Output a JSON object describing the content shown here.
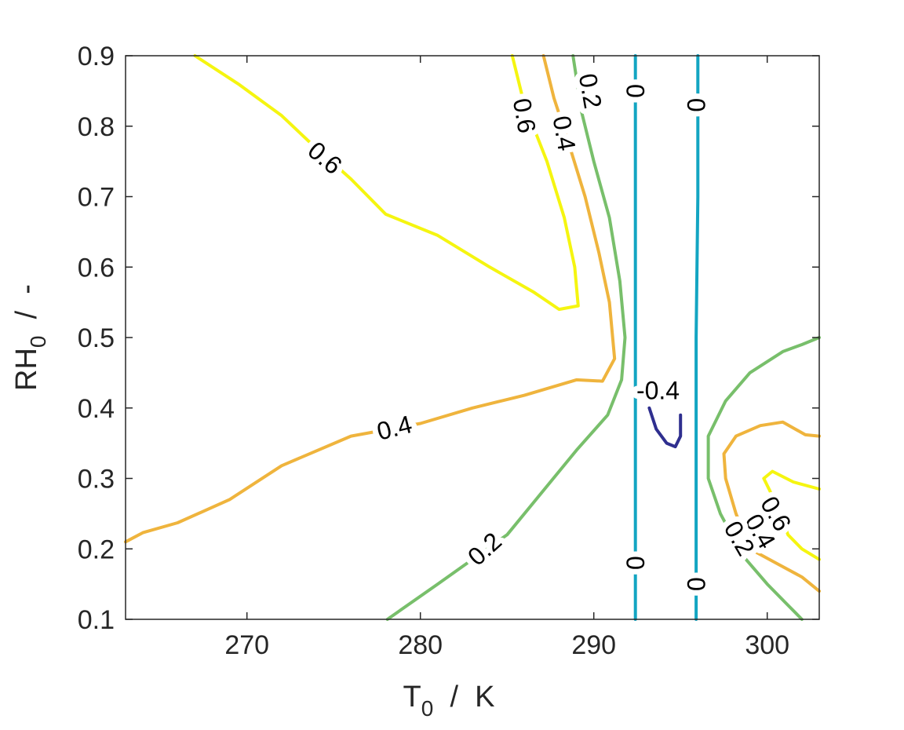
{
  "chart_data": {
    "type": "contour",
    "xlabel": {
      "main": "T",
      "sub": "0",
      "unit": "  /  K"
    },
    "ylabel": {
      "main": "RH",
      "sub": "0",
      "unit": "  /  -"
    },
    "xlim": [
      263,
      303
    ],
    "ylim": [
      0.1,
      0.9
    ],
    "xticks": [
      270,
      280,
      290,
      300
    ],
    "yticks": [
      0.1,
      0.2,
      0.3,
      0.4,
      0.5,
      0.6,
      0.7,
      0.8,
      0.9
    ],
    "xtick_labels": [
      "270",
      "280",
      "290",
      "300"
    ],
    "ytick_labels": [
      "0.1",
      "0.2",
      "0.3",
      "0.4",
      "0.5",
      "0.6",
      "0.7",
      "0.8",
      "0.9"
    ],
    "grid": false,
    "box": true,
    "contours": [
      {
        "level": 0.6,
        "color": "#f5f510",
        "points": [
          [
            267.0,
            0.9
          ],
          [
            269.5,
            0.86
          ],
          [
            272.0,
            0.815
          ],
          [
            273.5,
            0.78
          ],
          [
            276.0,
            0.725
          ],
          [
            278.0,
            0.675
          ],
          [
            281.0,
            0.645
          ],
          [
            284.0,
            0.6
          ],
          [
            286.5,
            0.565
          ],
          [
            288.0,
            0.54
          ],
          [
            289.1,
            0.545
          ],
          [
            288.9,
            0.6
          ],
          [
            288.3,
            0.67
          ],
          [
            287.3,
            0.75
          ],
          [
            286.5,
            0.8
          ],
          [
            285.9,
            0.84
          ],
          [
            285.3,
            0.9
          ]
        ]
      },
      {
        "level": 0.4,
        "color": "#efb43d",
        "points": [
          [
            263.0,
            0.21
          ],
          [
            264.0,
            0.223
          ],
          [
            266.0,
            0.237
          ],
          [
            269.0,
            0.27
          ],
          [
            272.0,
            0.318
          ],
          [
            276.0,
            0.36
          ],
          [
            280.0,
            0.378
          ],
          [
            283.0,
            0.4
          ],
          [
            286.0,
            0.418
          ],
          [
            289.0,
            0.44
          ],
          [
            290.5,
            0.438
          ],
          [
            291.2,
            0.47
          ],
          [
            290.9,
            0.55
          ],
          [
            290.3,
            0.62
          ],
          [
            289.5,
            0.7
          ],
          [
            288.5,
            0.78
          ],
          [
            287.7,
            0.84
          ],
          [
            287.1,
            0.9
          ]
        ]
      },
      {
        "level": 0.2,
        "color": "#78bf6b",
        "points": [
          [
            278.1,
            0.1
          ],
          [
            281.0,
            0.15
          ],
          [
            285.0,
            0.22
          ],
          [
            289.0,
            0.34
          ],
          [
            290.8,
            0.39
          ],
          [
            291.6,
            0.44
          ],
          [
            291.8,
            0.5
          ],
          [
            291.5,
            0.58
          ],
          [
            290.9,
            0.67
          ],
          [
            290.0,
            0.75
          ],
          [
            289.3,
            0.82
          ],
          [
            288.8,
            0.9
          ]
        ]
      },
      {
        "level": 0,
        "color": "#13a5c2",
        "points": [
          [
            292.4,
            0.1
          ],
          [
            292.4,
            0.3
          ],
          [
            292.4,
            0.5
          ],
          [
            292.4,
            0.7
          ],
          [
            292.4,
            0.9
          ]
        ]
      },
      {
        "level": 0,
        "color": "#13a5c2",
        "points": [
          [
            295.9,
            0.1
          ],
          [
            295.9,
            0.3
          ],
          [
            295.9,
            0.5
          ],
          [
            296.0,
            0.7
          ],
          [
            296.0,
            0.9
          ]
        ]
      },
      {
        "level": -0.4,
        "color": "#2f2f8f",
        "points": [
          [
            293.2,
            0.4
          ],
          [
            293.6,
            0.37
          ],
          [
            294.2,
            0.35
          ],
          [
            294.7,
            0.345
          ],
          [
            295.0,
            0.36
          ],
          [
            295.0,
            0.39
          ]
        ]
      },
      {
        "level": 0.2,
        "color": "#78bf6b",
        "points": [
          [
            303.0,
            0.5
          ],
          [
            302.0,
            0.49
          ],
          [
            300.9,
            0.48
          ],
          [
            299.0,
            0.45
          ],
          [
            297.6,
            0.41
          ],
          [
            296.6,
            0.36
          ],
          [
            296.6,
            0.3
          ],
          [
            297.3,
            0.25
          ],
          [
            298.6,
            0.19
          ],
          [
            300.0,
            0.15
          ],
          [
            301.0,
            0.125
          ],
          [
            302.0,
            0.1
          ]
        ]
      },
      {
        "level": 0.4,
        "color": "#efb43d",
        "points": [
          [
            303.0,
            0.36
          ],
          [
            302.2,
            0.362
          ],
          [
            300.9,
            0.38
          ],
          [
            299.6,
            0.375
          ],
          [
            298.2,
            0.36
          ],
          [
            297.5,
            0.335
          ],
          [
            297.6,
            0.3
          ],
          [
            298.2,
            0.25
          ],
          [
            299.0,
            0.2
          ],
          [
            300.5,
            0.18
          ],
          [
            302.0,
            0.16
          ],
          [
            303.0,
            0.14
          ]
        ]
      },
      {
        "level": 0.6,
        "color": "#f5f510",
        "points": [
          [
            303.0,
            0.285
          ],
          [
            301.5,
            0.295
          ],
          [
            300.3,
            0.31
          ],
          [
            299.8,
            0.3
          ],
          [
            300.6,
            0.26
          ],
          [
            301.2,
            0.22
          ],
          [
            302.0,
            0.2
          ],
          [
            303.0,
            0.185
          ]
        ]
      }
    ],
    "labels": [
      {
        "text": "0.6",
        "x": 274.5,
        "y": 0.755,
        "angle": 40
      },
      {
        "text": "0.4",
        "x": 278.5,
        "y": 0.372,
        "angle": -14
      },
      {
        "text": "0.2",
        "x": 283.7,
        "y": 0.2,
        "angle": -42
      },
      {
        "text": "0.6",
        "x": 286.0,
        "y": 0.815,
        "angle": 80
      },
      {
        "text": "0.4",
        "x": 288.3,
        "y": 0.79,
        "angle": 80
      },
      {
        "text": "0.2",
        "x": 289.8,
        "y": 0.85,
        "angle": 80
      },
      {
        "text": "0",
        "x": 292.4,
        "y": 0.85,
        "angle": 90
      },
      {
        "text": "0",
        "x": 295.9,
        "y": 0.83,
        "angle": 90
      },
      {
        "text": "0",
        "x": 292.4,
        "y": 0.18,
        "angle": 90
      },
      {
        "text": "0",
        "x": 295.9,
        "y": 0.15,
        "angle": 90
      },
      {
        "text": "-0.4",
        "x": 293.7,
        "y": 0.425,
        "angle": 0
      },
      {
        "text": "0.6",
        "x": 300.5,
        "y": 0.25,
        "angle": 60
      },
      {
        "text": "0.4",
        "x": 299.6,
        "y": 0.225,
        "angle": 60
      },
      {
        "text": "0.2",
        "x": 298.4,
        "y": 0.215,
        "angle": 60
      }
    ]
  }
}
